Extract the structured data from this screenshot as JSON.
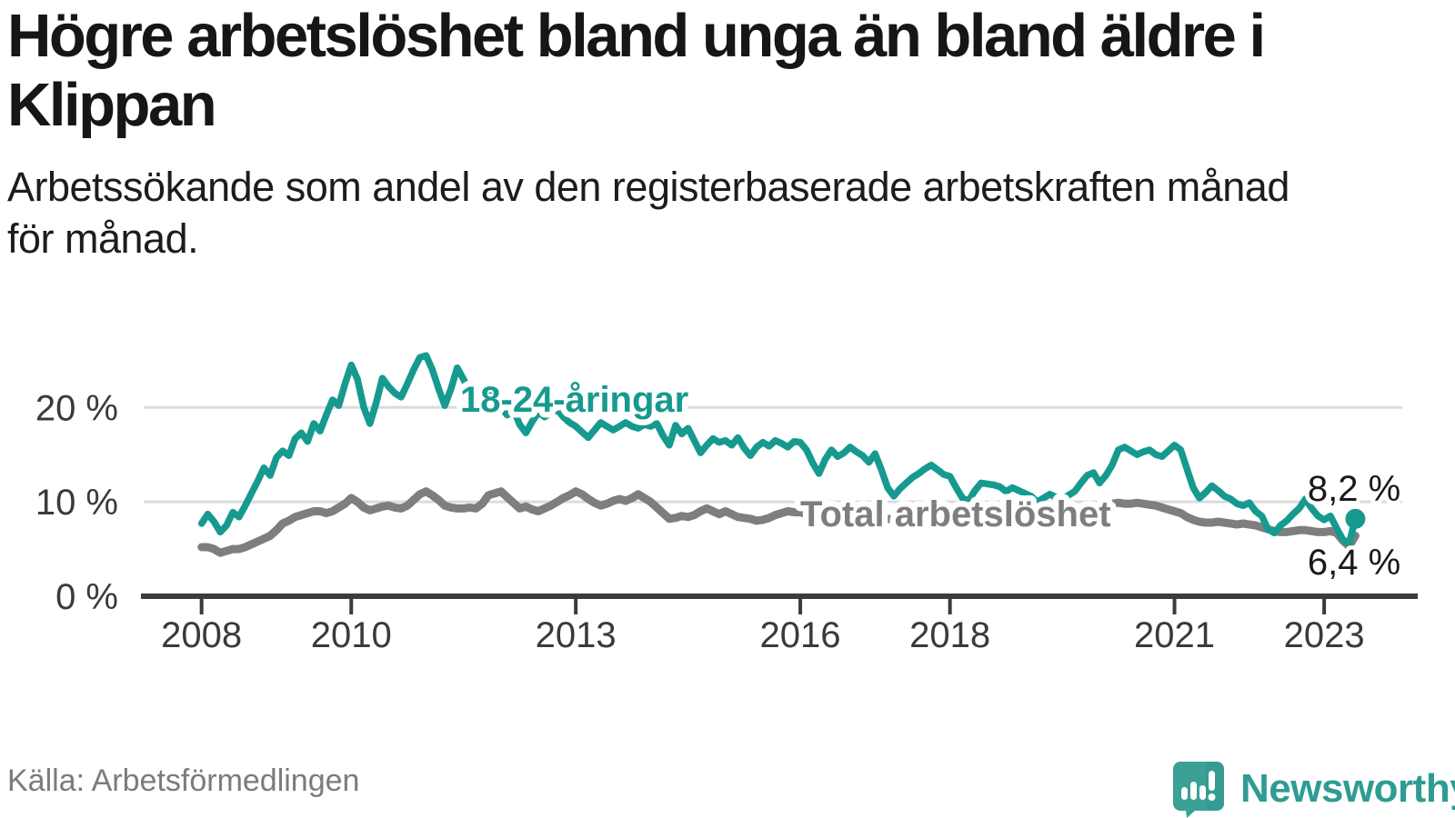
{
  "source": "Källa: Arbetsförmedlingen",
  "branding": {
    "name": "Newsworthy",
    "icon": "newsworthy-speech-bubble-barchart-icon",
    "text_color": "#2E9C93",
    "icon_color": "#3BA197"
  },
  "colors": {
    "youth_line": "#169A8F",
    "total_line": "#7E7E7E",
    "gridline": "#DBDBDB",
    "axis": "#3B3B3B",
    "tick_text": "#3A3A3A",
    "title_text": "#161616",
    "source_text": "#7B7B7B"
  },
  "chart_data": {
    "type": "line",
    "title": "Högre arbetslöshet bland unga än bland äldre i\nKlippan",
    "subtitle": "Arbetssökande som andel av den registerbaserade arbetskraften månad\nför månad.",
    "unit": "%",
    "frequency": "monthly",
    "start_year": 2008,
    "end_point": "2023-06",
    "x_ticks": [
      2008,
      2010,
      2013,
      2016,
      2018,
      2021,
      2023
    ],
    "y_ticks": [
      0,
      10,
      20
    ],
    "y_tick_labels": [
      "0 %",
      "10 %",
      "20 %"
    ],
    "xlim": [
      2007.19,
      2024.25
    ],
    "ylim": [
      0,
      26
    ],
    "grid": "horizontal-only",
    "legend": "inline-labels",
    "series": [
      {
        "name": "Total arbetslöshet",
        "color": "#7E7E7E",
        "end_value": 6.4,
        "end_label": "6,4 %",
        "end_marker": false,
        "values": [
          5.2,
          5.2,
          5.0,
          4.6,
          4.8,
          5.0,
          5.0,
          5.2,
          5.5,
          5.8,
          6.1,
          6.4,
          7.0,
          7.7,
          8.0,
          8.4,
          8.6,
          8.8,
          9.0,
          9.0,
          8.8,
          9.0,
          9.4,
          9.8,
          10.4,
          10.0,
          9.4,
          9.1,
          9.3,
          9.5,
          9.6,
          9.4,
          9.3,
          9.6,
          10.2,
          10.8,
          11.1,
          10.7,
          10.2,
          9.6,
          9.4,
          9.3,
          9.3,
          9.4,
          9.3,
          9.8,
          10.7,
          10.9,
          11.1,
          10.5,
          9.9,
          9.3,
          9.5,
          9.2,
          9.0,
          9.3,
          9.6,
          10.0,
          10.4,
          10.7,
          11.1,
          10.8,
          10.3,
          9.9,
          9.6,
          9.8,
          10.1,
          10.3,
          10.1,
          10.4,
          10.8,
          10.4,
          10.0,
          9.4,
          8.8,
          8.2,
          8.3,
          8.5,
          8.4,
          8.6,
          9.0,
          9.3,
          9.0,
          8.7,
          9.0,
          8.7,
          8.4,
          8.3,
          8.2,
          8.0,
          8.1,
          8.3,
          8.6,
          8.8,
          9.0,
          8.9,
          8.9,
          8.7,
          8.5,
          8.4,
          8.3,
          8.2,
          8.2,
          8.3,
          8.4,
          8.5,
          8.5,
          8.4,
          8.4,
          8.3,
          8.2,
          8.1,
          8.0,
          8.0,
          8.1,
          8.2,
          8.3,
          8.3,
          8.2,
          8.1,
          8.1,
          8.0,
          7.9,
          7.8,
          7.8,
          7.7,
          7.7,
          7.8,
          7.9,
          8.0,
          8.0,
          7.9,
          7.9,
          7.8,
          7.8,
          7.9,
          8.0,
          8.1,
          8.3,
          8.5,
          8.7,
          8.9,
          9.1,
          9.3,
          9.5,
          9.6,
          9.8,
          9.9,
          9.8,
          9.8,
          9.9,
          9.8,
          9.7,
          9.6,
          9.4,
          9.2,
          9.0,
          8.8,
          8.4,
          8.1,
          7.9,
          7.8,
          7.8,
          7.9,
          7.8,
          7.7,
          7.6,
          7.7,
          7.6,
          7.5,
          7.3,
          7.1,
          6.9,
          6.8,
          6.8,
          6.9,
          7.0,
          7.0,
          6.9,
          6.8,
          6.8,
          6.9,
          6.7,
          5.9,
          5.3,
          6.4
        ]
      },
      {
        "name": "18-24-åringar",
        "color": "#169A8F",
        "end_value": 8.2,
        "end_label": "8,2 %",
        "end_marker": true,
        "values": [
          7.7,
          8.7,
          7.9,
          6.8,
          7.5,
          8.9,
          8.4,
          9.6,
          10.9,
          12.2,
          13.6,
          12.8,
          14.7,
          15.4,
          14.9,
          16.7,
          17.3,
          16.4,
          18.3,
          17.5,
          19.2,
          20.8,
          20.2,
          22.5,
          24.5,
          23.0,
          20.0,
          18.3,
          20.5,
          23.1,
          22.2,
          21.5,
          21.1,
          22.5,
          24.0,
          25.3,
          25.5,
          24.0,
          22.0,
          20.2,
          22.0,
          24.2,
          23.0,
          21.5,
          20.0,
          21.0,
          22.0,
          21.0,
          20.0,
          19.2,
          19.8,
          18.2,
          17.3,
          18.5,
          19.5,
          19.0,
          19.4,
          19.8,
          19.0,
          18.4,
          18.0,
          17.4,
          16.8,
          17.6,
          18.4,
          18.0,
          17.6,
          18.0,
          18.4,
          18.0,
          17.8,
          18.2,
          18.0,
          18.3,
          17.0,
          16.0,
          18.1,
          17.2,
          17.8,
          16.5,
          15.2,
          16.0,
          16.7,
          16.3,
          16.5,
          16.0,
          16.8,
          15.7,
          14.9,
          15.8,
          16.3,
          15.9,
          16.5,
          16.2,
          15.8,
          16.4,
          16.3,
          15.5,
          14.1,
          13.0,
          14.5,
          15.5,
          14.8,
          15.2,
          15.8,
          15.3,
          14.9,
          14.2,
          15.1,
          13.4,
          11.5,
          10.6,
          11.4,
          12.0,
          12.6,
          13.0,
          13.5,
          13.9,
          13.4,
          12.9,
          12.7,
          11.5,
          10.4,
          10.1,
          11.2,
          12.0,
          11.9,
          11.8,
          11.6,
          11.1,
          11.5,
          11.2,
          10.9,
          10.6,
          10.0,
          10.4,
          10.8,
          10.5,
          10.3,
          10.7,
          11.1,
          12.0,
          12.8,
          13.1,
          12.0,
          12.8,
          13.9,
          15.5,
          15.8,
          15.4,
          15.0,
          15.3,
          15.5,
          15.0,
          14.8,
          15.4,
          16.0,
          15.5,
          13.5,
          11.5,
          10.4,
          11.0,
          11.7,
          11.2,
          10.6,
          10.3,
          9.8,
          9.6,
          9.9,
          9.0,
          8.5,
          7.1,
          6.7,
          7.5,
          8.0,
          8.7,
          9.3,
          10.3,
          9.3,
          8.5,
          8.1,
          8.5,
          7.2,
          6.0,
          5.6,
          8.2
        ]
      }
    ]
  }
}
